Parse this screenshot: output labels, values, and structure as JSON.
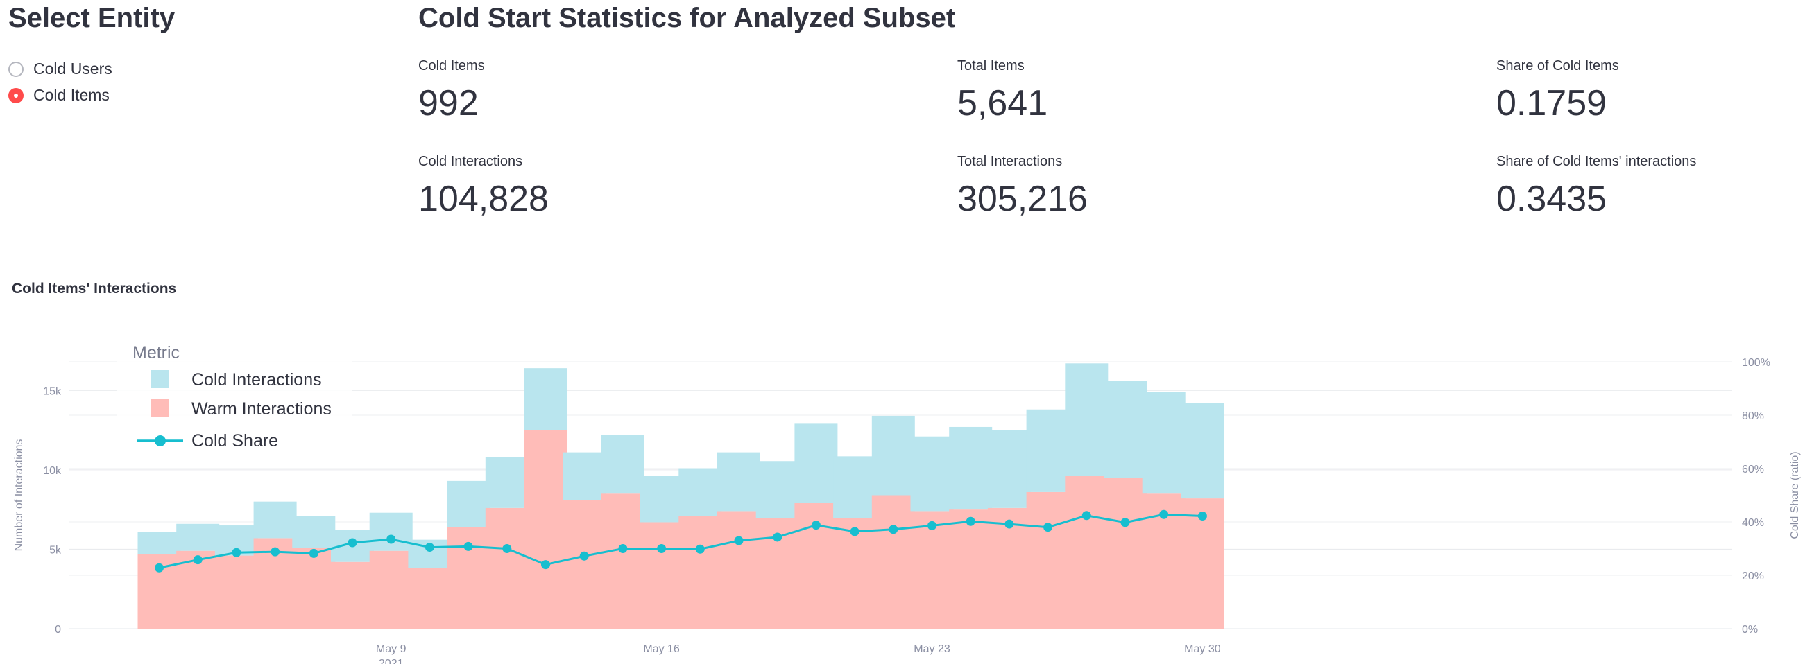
{
  "sidebar": {
    "title": "Select Entity",
    "options": [
      {
        "label": "Cold Users",
        "selected": false
      },
      {
        "label": "Cold Items",
        "selected": true
      }
    ]
  },
  "stats": {
    "title": "Cold Start Statistics for Analyzed Subset",
    "metrics": [
      {
        "label": "Cold Items",
        "value": "992"
      },
      {
        "label": "Total Items",
        "value": "5,641"
      },
      {
        "label": "Share of Cold Items",
        "value": "0.1759"
      },
      {
        "label": "Cold Interactions",
        "value": "104,828"
      },
      {
        "label": "Total Interactions",
        "value": "305,216"
      },
      {
        "label": "Share of Cold Items' interactions",
        "value": "0.3435"
      }
    ]
  },
  "colors": {
    "cold": "#b9e5ee",
    "warm": "#ffbcb8",
    "share": "#17becf",
    "accent": "#ff4b4b"
  },
  "chart_data": {
    "type": "bar",
    "title": "Cold Items' Interactions",
    "stacked": true,
    "categories": [
      "May 3",
      "May 4",
      "May 5",
      "May 6",
      "May 7",
      "May 8",
      "May 9",
      "May 10",
      "May 11",
      "May 12",
      "May 13",
      "May 14",
      "May 15",
      "May 16",
      "May 17",
      "May 18",
      "May 19",
      "May 20",
      "May 21",
      "May 22",
      "May 23",
      "May 24",
      "May 25",
      "May 26",
      "May 27",
      "May 28",
      "May 29",
      "May 30",
      "May 31"
    ],
    "series": [
      {
        "name": "Warm Interactions",
        "type": "bar",
        "axis": "left",
        "values": [
          4700,
          4900,
          4600,
          5700,
          5100,
          4200,
          4900,
          3800,
          6400,
          7600,
          12500,
          8100,
          8500,
          6700,
          7100,
          7400,
          6950,
          7900,
          6950,
          8400,
          7400,
          7500,
          7600,
          8600,
          9600,
          9500,
          8500,
          8200,
          null
        ]
      },
      {
        "name": "Cold Interactions",
        "type": "bar",
        "axis": "left",
        "values": [
          1400,
          1700,
          1900,
          2300,
          2000,
          2000,
          2400,
          1800,
          2900,
          3200,
          3900,
          3000,
          3700,
          2900,
          3000,
          3700,
          3600,
          5000,
          3900,
          5000,
          4700,
          5200,
          4900,
          5200,
          7100,
          6100,
          6400,
          6000,
          null
        ]
      },
      {
        "name": "Cold Share",
        "type": "line",
        "axis": "right",
        "values": [
          0.228,
          0.258,
          0.285,
          0.288,
          0.282,
          0.322,
          0.335,
          0.305,
          0.308,
          0.3,
          0.24,
          0.272,
          0.3,
          0.3,
          0.298,
          0.33,
          0.343,
          0.388,
          0.364,
          0.372,
          0.386,
          0.402,
          0.392,
          0.38,
          0.424,
          0.398,
          0.428,
          0.422,
          null
        ]
      }
    ],
    "xlabel": "",
    "ylabel": "Number of Interactions",
    "y2label": "Cold Share (ratio)",
    "ylim": [
      0,
      16800
    ],
    "y2lim": [
      0,
      1.0
    ],
    "yticks": [
      0,
      5000,
      10000,
      15000
    ],
    "ytick_labels": [
      "0",
      "5k",
      "10k",
      "15k"
    ],
    "y2ticks": [
      0,
      0.2,
      0.4,
      0.6,
      0.8,
      1.0
    ],
    "y2tick_labels": [
      "0%",
      "20%",
      "40%",
      "60%",
      "80%",
      "100%"
    ],
    "xticks": [
      {
        "label": "May 9",
        "sub": "2021",
        "index": 6
      },
      {
        "label": "May 16",
        "sub": "",
        "index": 13
      },
      {
        "label": "May 23",
        "sub": "",
        "index": 20
      },
      {
        "label": "May 30",
        "sub": "",
        "index": 27
      }
    ],
    "legend": {
      "title": "Metric",
      "position": "top-left",
      "entries": [
        "Cold Interactions",
        "Warm Interactions",
        "Cold Share"
      ]
    },
    "grid": true
  }
}
